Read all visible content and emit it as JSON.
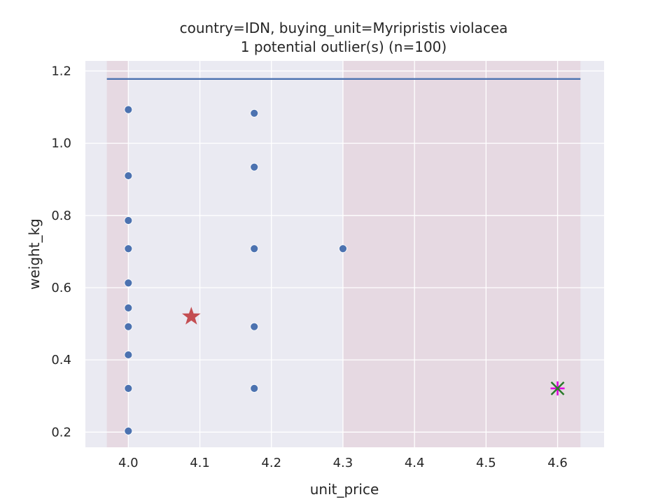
{
  "chart_data": {
    "type": "scatter",
    "title": "country=IDN, buying_unit=Myripristis violacea",
    "subtitle": "1 potential outlier(s) (n=100)",
    "xlabel": "unit_price",
    "ylabel": "weight_kg",
    "xlim": [
      3.94,
      4.665
    ],
    "ylim": [
      0.158,
      1.228
    ],
    "xticks": [
      4.0,
      4.1,
      4.2,
      4.3,
      4.4,
      4.5,
      4.6
    ],
    "xtick_labels": [
      "4.0",
      "4.1",
      "4.2",
      "4.3",
      "4.4",
      "4.5",
      "4.6"
    ],
    "yticks": [
      0.2,
      0.4,
      0.6,
      0.8,
      1.0,
      1.2
    ],
    "ytick_labels": [
      "0.2",
      "0.4",
      "0.6",
      "0.8",
      "1.0",
      "1.2"
    ],
    "grid": true,
    "legend": null,
    "shaded_regions": [
      {
        "x0": 3.97,
        "x1": 4.0,
        "color": "#d9a0a8"
      },
      {
        "x0": 4.3,
        "x1": 4.632,
        "color": "#d9a0a8"
      }
    ],
    "hline": {
      "y": 1.178,
      "x0": 3.97,
      "x1": 4.632,
      "color": "#4c72b0"
    },
    "points": [
      {
        "x": 4.0,
        "y": 1.093
      },
      {
        "x": 4.0,
        "y": 0.91
      },
      {
        "x": 4.0,
        "y": 0.786
      },
      {
        "x": 4.0,
        "y": 0.708
      },
      {
        "x": 4.0,
        "y": 0.613
      },
      {
        "x": 4.0,
        "y": 0.544
      },
      {
        "x": 4.0,
        "y": 0.492
      },
      {
        "x": 4.0,
        "y": 0.414
      },
      {
        "x": 4.0,
        "y": 0.321
      },
      {
        "x": 4.0,
        "y": 0.203
      },
      {
        "x": 4.176,
        "y": 1.083
      },
      {
        "x": 4.176,
        "y": 0.934
      },
      {
        "x": 4.176,
        "y": 0.708
      },
      {
        "x": 4.176,
        "y": 0.492
      },
      {
        "x": 4.176,
        "y": 0.321
      },
      {
        "x": 4.3,
        "y": 0.708
      }
    ],
    "point_color": "#4c72b0",
    "star_marker": {
      "x": 4.088,
      "y": 0.52,
      "color": "#c44e52"
    },
    "outlier_marker": {
      "x": 4.6,
      "y": 0.321,
      "x_color": "#2a7a2a",
      "plus_color": "#e000e0"
    },
    "colors": {
      "axes_bg": "#eaeaf2",
      "grid": "#ffffff"
    }
  }
}
